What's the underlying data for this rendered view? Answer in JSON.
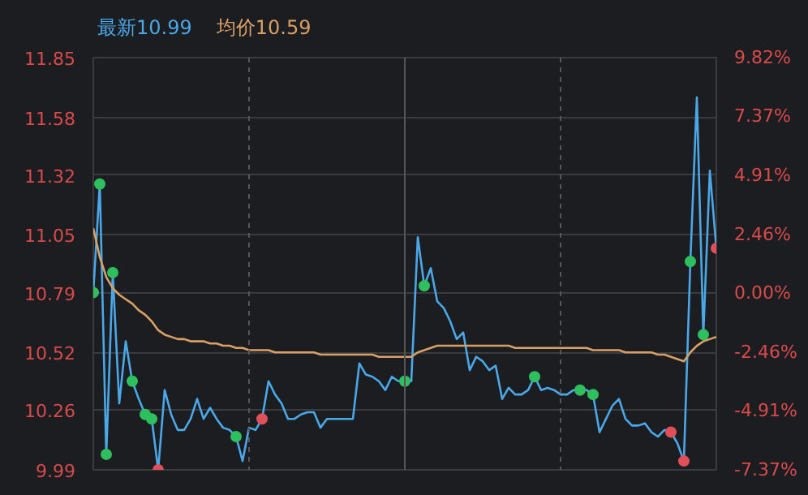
{
  "chart_data": {
    "type": "line",
    "annotations": [
      "最新10.99",
      "均价10.59"
    ],
    "categories": [
      null,
      null,
      null,
      null,
      null,
      null,
      null,
      null,
      null,
      null,
      null,
      null,
      null,
      null,
      null,
      null,
      null,
      null,
      null,
      null,
      null,
      null,
      null,
      null,
      null,
      null,
      null,
      null,
      null,
      null,
      null,
      null,
      null,
      null,
      null,
      null,
      null,
      null,
      null,
      null,
      null,
      null,
      null,
      null,
      null,
      null,
      null,
      null,
      null,
      null,
      null,
      null,
      null,
      null,
      null,
      null,
      null,
      null,
      null,
      null,
      null,
      null,
      null,
      null,
      null,
      null,
      null,
      null,
      null,
      null,
      null,
      null,
      null,
      null,
      null,
      null,
      null,
      null,
      null,
      null,
      null,
      null,
      null,
      null,
      null,
      null,
      null,
      null,
      null,
      null,
      null,
      null,
      null,
      null,
      null,
      null,
      null
    ],
    "series": [
      {
        "color": "#4aa8e8",
        "values": [
          10.79,
          11.28,
          10.06,
          10.88,
          10.29,
          10.57,
          10.39,
          10.31,
          10.24,
          10.22,
          9.99,
          10.35,
          10.24,
          10.17,
          10.17,
          10.22,
          10.31,
          10.22,
          10.27,
          10.22,
          10.18,
          10.17,
          10.14,
          10.03,
          10.18,
          10.17,
          10.22,
          10.39,
          10.33,
          10.29,
          10.22,
          10.22,
          10.24,
          10.25,
          10.25,
          10.18,
          10.22,
          10.22,
          10.22,
          10.22,
          10.22,
          10.47,
          10.42,
          10.41,
          10.39,
          10.35,
          10.41,
          10.39,
          10.39,
          10.39,
          11.04,
          10.82,
          10.9,
          10.75,
          10.72,
          10.66,
          10.58,
          10.61,
          10.44,
          10.5,
          10.48,
          10.44,
          10.46,
          10.31,
          10.36,
          10.33,
          10.33,
          10.35,
          10.41,
          10.35,
          10.36,
          10.35,
          10.33,
          10.33,
          10.35,
          10.35,
          10.35,
          10.33,
          10.16,
          10.22,
          10.28,
          10.31,
          10.22,
          10.19,
          10.19,
          10.2,
          10.16,
          10.14,
          10.17,
          10.16,
          10.11,
          10.03,
          10.93,
          11.67,
          10.6,
          11.34,
          10.99
        ]
      },
      {
        "color": "#d9a066",
        "values": [
          11.08,
          10.95,
          10.86,
          10.81,
          10.78,
          10.76,
          10.74,
          10.71,
          10.69,
          10.66,
          10.62,
          10.6,
          10.59,
          10.58,
          10.58,
          10.57,
          10.57,
          10.57,
          10.56,
          10.56,
          10.55,
          10.55,
          10.54,
          10.54,
          10.53,
          10.53,
          10.53,
          10.53,
          10.52,
          10.52,
          10.52,
          10.52,
          10.52,
          10.52,
          10.52,
          10.51,
          10.51,
          10.51,
          10.51,
          10.51,
          10.51,
          10.51,
          10.51,
          10.51,
          10.5,
          10.5,
          10.5,
          10.5,
          10.5,
          10.5,
          10.52,
          10.53,
          10.54,
          10.55,
          10.55,
          10.55,
          10.55,
          10.55,
          10.55,
          10.55,
          10.55,
          10.55,
          10.55,
          10.55,
          10.55,
          10.54,
          10.54,
          10.54,
          10.54,
          10.54,
          10.54,
          10.54,
          10.54,
          10.54,
          10.54,
          10.54,
          10.54,
          10.53,
          10.53,
          10.53,
          10.53,
          10.53,
          10.52,
          10.52,
          10.52,
          10.52,
          10.52,
          10.51,
          10.51,
          10.5,
          10.49,
          10.48,
          10.52,
          10.55,
          10.57,
          10.58,
          10.59
        ]
      },
      {
        "type": "scatter",
        "marker": "circle",
        "color": "#2fbf5f",
        "values": [
          10.79,
          11.28,
          10.06,
          10.88,
          null,
          null,
          10.39,
          null,
          10.24,
          10.22,
          null,
          null,
          null,
          null,
          null,
          null,
          null,
          null,
          null,
          null,
          null,
          null,
          10.14,
          null,
          null,
          null,
          null,
          null,
          null,
          null,
          null,
          null,
          null,
          null,
          null,
          null,
          null,
          null,
          null,
          null,
          null,
          null,
          null,
          null,
          null,
          null,
          null,
          null,
          10.39,
          null,
          null,
          10.82,
          null,
          null,
          null,
          null,
          null,
          null,
          null,
          null,
          null,
          null,
          null,
          null,
          null,
          null,
          null,
          null,
          10.41,
          null,
          null,
          null,
          null,
          null,
          null,
          10.35,
          null,
          10.33,
          null,
          null,
          null,
          null,
          null,
          null,
          null,
          null,
          null,
          null,
          null,
          null,
          null,
          null,
          10.93,
          null,
          10.6,
          null,
          null
        ]
      },
      {
        "type": "scatter",
        "marker": "circle",
        "color": "#e0505a",
        "values": [
          null,
          null,
          null,
          null,
          null,
          null,
          null,
          null,
          null,
          null,
          9.99,
          null,
          null,
          null,
          null,
          null,
          null,
          null,
          null,
          null,
          null,
          null,
          null,
          null,
          null,
          null,
          10.22,
          null,
          null,
          null,
          null,
          null,
          null,
          null,
          null,
          null,
          null,
          null,
          null,
          null,
          null,
          null,
          null,
          null,
          null,
          null,
          null,
          null,
          null,
          null,
          null,
          null,
          null,
          null,
          null,
          null,
          null,
          null,
          null,
          null,
          null,
          null,
          null,
          null,
          null,
          null,
          null,
          null,
          null,
          null,
          null,
          null,
          null,
          null,
          null,
          null,
          null,
          null,
          null,
          null,
          null,
          null,
          null,
          null,
          null,
          null,
          null,
          null,
          null,
          10.16,
          null,
          10.03,
          null,
          null,
          null,
          null,
          10.99
        ]
      }
    ],
    "marker": "none",
    "ylim": [
      9.99,
      11.85
    ],
    "yticks": [
      9.99,
      10.26,
      10.52,
      10.79,
      11.05,
      11.32,
      11.58,
      11.85
    ],
    "y2lim": [
      -7.37,
      9.82
    ],
    "y2ticks": [
      {
        "value": -7.37,
        "label": "-7.37%"
      },
      {
        "value": -4.91,
        "label": "-4.91%"
      },
      {
        "value": -2.46,
        "label": "-2.46%"
      },
      {
        "value": 0,
        "label": "0.00%"
      },
      {
        "value": 2.46,
        "label": "2.46%"
      },
      {
        "value": 4.91,
        "label": "4.91%"
      },
      {
        "value": 7.37,
        "label": "7.37%"
      },
      {
        "value": 9.82,
        "label": "9.82%"
      }
    ],
    "grid": true
  }
}
